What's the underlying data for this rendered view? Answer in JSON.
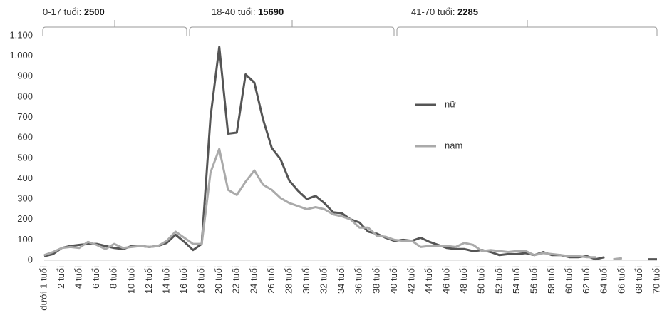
{
  "chart_data": {
    "type": "line",
    "groups": [
      {
        "label": "0-17 tuổi: ",
        "total": 2500
      },
      {
        "label": "18-40 tuổi: ",
        "total": 15690
      },
      {
        "label": "41-70 tuổi: ",
        "total": 2285
      }
    ],
    "categories": [
      "dưới 1 tuổi",
      null,
      "2 tuổi",
      null,
      "4 tuổi",
      null,
      "6 tuổi",
      null,
      "8 tuổi",
      null,
      "10 tuổi",
      null,
      "12 tuổi",
      null,
      "14 tuổi",
      null,
      "16 tuổi",
      null,
      "18 tuổi",
      null,
      "20 tuổi",
      null,
      "22 tuổi",
      null,
      "24 tuổi",
      null,
      "26 tuổi",
      null,
      "28 tuổi",
      null,
      "30 tuổi",
      null,
      "32 tuổi",
      null,
      "34 tuổi",
      null,
      "36 tuổi",
      null,
      "38 tuổi",
      null,
      "40 tuổi",
      null,
      "42 tuổi",
      null,
      "44 tuổi",
      null,
      "46 tuổi",
      null,
      "48 tuổi",
      null,
      "50 tuổi",
      null,
      "52 tuổi",
      null,
      "54 tuổi",
      null,
      "56 tuổi",
      null,
      "58 tuổi",
      null,
      "60 tuổi",
      null,
      "62 tuổi",
      null,
      "64 tuổi",
      null,
      "66 tuổi",
      null,
      "68 tuổi",
      null,
      "70 tuổi"
    ],
    "series": [
      {
        "name": "nữ",
        "color": "#555555",
        "values": [
          20,
          30,
          60,
          70,
          75,
          80,
          80,
          70,
          60,
          55,
          70,
          70,
          65,
          70,
          85,
          125,
          90,
          50,
          80,
          700,
          1045,
          620,
          625,
          910,
          870,
          690,
          550,
          495,
          390,
          340,
          300,
          315,
          280,
          235,
          230,
          200,
          185,
          140,
          130,
          110,
          95,
          100,
          95,
          110,
          90,
          75,
          60,
          55,
          55,
          45,
          50,
          40,
          25,
          30,
          30,
          35,
          25,
          40,
          25,
          25,
          15,
          15,
          20,
          5,
          15,
          null,
          null,
          null,
          null,
          5,
          5
        ]
      },
      {
        "name": "nam",
        "color": "#aaaaaa",
        "values": [
          25,
          40,
          60,
          65,
          60,
          90,
          75,
          55,
          80,
          60,
          65,
          70,
          65,
          70,
          95,
          140,
          110,
          80,
          80,
          430,
          545,
          345,
          320,
          385,
          440,
          370,
          345,
          305,
          280,
          265,
          250,
          260,
          250,
          225,
          215,
          200,
          160,
          160,
          120,
          115,
          100,
          95,
          95,
          65,
          70,
          70,
          70,
          65,
          85,
          75,
          45,
          50,
          45,
          40,
          45,
          45,
          25,
          35,
          30,
          25,
          20,
          20,
          15,
          15,
          null,
          5,
          10,
          null,
          null,
          null,
          null
        ]
      }
    ],
    "ylim": [
      0,
      1100
    ],
    "yticks": [
      0,
      100,
      200,
      300,
      400,
      500,
      600,
      700,
      800,
      900,
      {
        "value": 1000,
        "label": "1.000"
      },
      {
        "value": 1100,
        "label": "1.100"
      }
    ]
  }
}
